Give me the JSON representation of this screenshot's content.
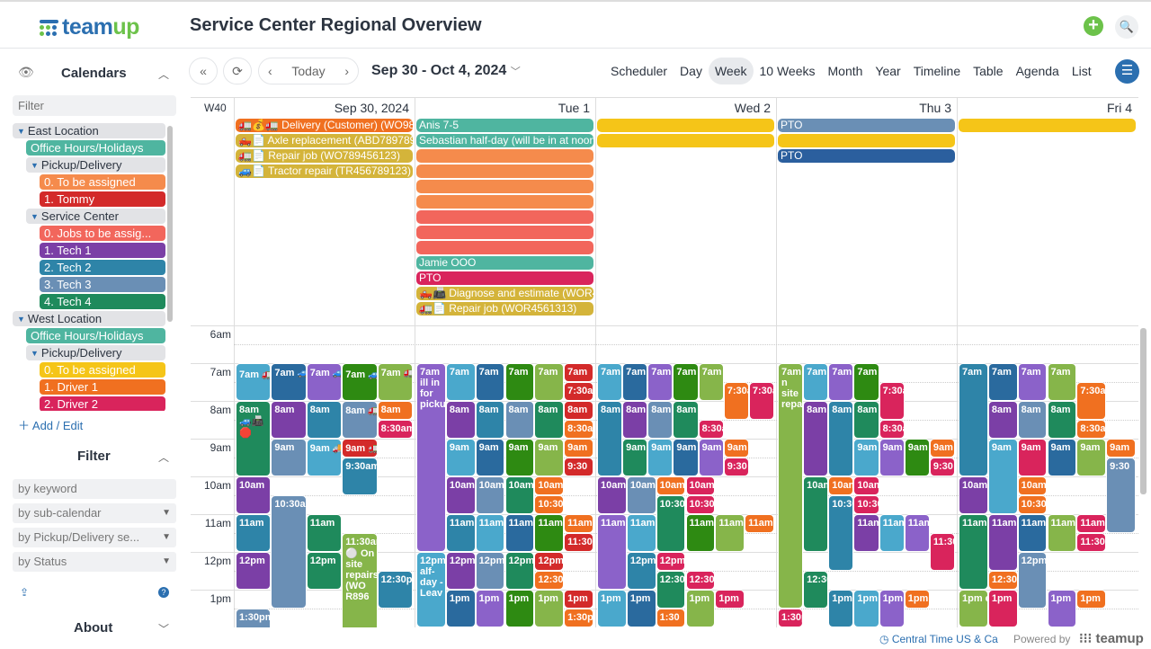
{
  "app": {
    "logo": "teamup",
    "title": "Service Center Regional Overview"
  },
  "sidebar": {
    "calendars_heading": "Calendars",
    "filter_placeholder": "Filter",
    "calendars": [
      {
        "label": "East Location",
        "group": true,
        "indent": 0
      },
      {
        "label": "Office Hours/Holidays",
        "color": "#4fb5a0",
        "indent": 1
      },
      {
        "label": "Pickup/Delivery",
        "group": true,
        "indent": 1
      },
      {
        "label": "0. To be assigned",
        "color": "#f58b4c",
        "indent": 2
      },
      {
        "label": "1. Tommy",
        "color": "#d32a2a",
        "indent": 2
      },
      {
        "label": "Service Center",
        "group": true,
        "indent": 1
      },
      {
        "label": "0. Jobs to be assig...",
        "color": "#f2665c",
        "indent": 2
      },
      {
        "label": "1. Tech 1",
        "color": "#7b3fa6",
        "indent": 2
      },
      {
        "label": "2. Tech 2",
        "color": "#2e84a8",
        "indent": 2
      },
      {
        "label": "3. Tech 3",
        "color": "#6a8fb5",
        "indent": 2
      },
      {
        "label": "4. Tech 4",
        "color": "#1f8a5c",
        "indent": 2
      },
      {
        "label": "West Location",
        "group": true,
        "indent": 0
      },
      {
        "label": "Office Hours/Holidays",
        "color": "#4fb5a0",
        "indent": 1
      },
      {
        "label": "Pickup/Delivery",
        "group": true,
        "indent": 1
      },
      {
        "label": "0. To be assigned",
        "color": "#f5c518",
        "indent": 2
      },
      {
        "label": "1. Driver 1",
        "color": "#f07020",
        "indent": 2
      },
      {
        "label": "2. Driver 2",
        "color": "#d9245c",
        "indent": 2
      }
    ],
    "add_edit": "Add / Edit",
    "filter_heading": "Filter",
    "filters": [
      "by keyword",
      "by sub-calendar",
      "by Pickup/Delivery se...",
      "by Status"
    ],
    "about_heading": "About"
  },
  "toolbar": {
    "today": "Today",
    "range": "Sep 30 - Oct 4, 2024",
    "views": [
      "Scheduler",
      "Day",
      "Week",
      "10 Weeks",
      "Month",
      "Year",
      "Timeline",
      "Table",
      "Agenda",
      "List"
    ],
    "active_view": "Week"
  },
  "grid": {
    "week": "W40",
    "days": [
      "Sep 30, 2024",
      "Tue 1",
      "Wed 2",
      "Thu 3",
      "Fri 4"
    ],
    "hours": [
      "6am",
      "7am",
      "8am",
      "9am",
      "10am",
      "11am",
      "12pm",
      "1pm"
    ],
    "first_hour": 6,
    "colors": {
      "lb": "#4aa8cc",
      "bl": "#2a6a9e",
      "pu": "#8b62c9",
      "dp": "#7b3fa6",
      "gr": "#2e8a12",
      "lg": "#86b54a",
      "te": "#1f8a5c",
      "st": "#6a8fb5",
      "mb": "#2e84a8",
      "rd": "#d32a2a",
      "or": "#f07020",
      "pk": "#d9245c",
      "yl": "#f5c518",
      "go": "#d4b43a",
      "sa": "#f58b4c",
      "co": "#f2665c",
      "aq": "#4fb5a0",
      "db": "#2b5f9e"
    },
    "allday": [
      [
        [
          "or",
          "🚛💰🚛 Delivery (Customer) (WO98"
        ],
        [
          "go",
          "🛻📄 Axle replacement (ABD789789"
        ],
        [
          "go",
          "🚛📄 Repair job (WO789456123)"
        ],
        [
          "go",
          "🚙📄 Tractor repair (TR456789123)"
        ]
      ],
      [
        [
          "aq",
          "Anis 7-5"
        ],
        [
          "aq",
          "Sebastian half-day (will be in at noon"
        ],
        [
          "sa",
          ""
        ],
        [
          "sa",
          ""
        ],
        [
          "sa",
          ""
        ],
        [
          "sa",
          ""
        ],
        [
          "co",
          ""
        ],
        [
          "co",
          ""
        ],
        [
          "co",
          ""
        ],
        [
          "aq",
          "Jamie OOO"
        ],
        [
          "pk",
          "PTO"
        ],
        [
          "go",
          "🛻📠 Diagnose and estimate (WOR4"
        ],
        [
          "go",
          "🚛📄 Repair job (WOR4561313)"
        ]
      ],
      [
        [
          "yl",
          ""
        ],
        [
          "yl",
          ""
        ]
      ],
      [
        [
          "st",
          "PTO"
        ],
        [
          "yl",
          ""
        ],
        [
          "db",
          "PTO"
        ]
      ],
      [
        [
          "yl",
          ""
        ]
      ]
    ],
    "events": [
      [
        [
          7,
          8,
          "lb",
          "7am 🚛〰 Repai"
        ],
        [
          7,
          8,
          "bl",
          "7am 🚙📠 ✓"
        ],
        [
          7,
          8,
          "pu",
          "7am 🚙✅ Small"
        ],
        [
          7,
          8,
          "gr",
          "7am 🚙〰 Lift"
        ],
        [
          7,
          8,
          "lg",
          "7am 🚛⏲ 📠"
        ],
        [
          8,
          10,
          "te",
          "8am 🚙📠 🛑"
        ],
        [
          8,
          9,
          "dp",
          "8am"
        ],
        [
          8,
          9,
          "mb",
          "8am"
        ],
        [
          8,
          9,
          "st",
          "8am 🚛⏲ 📠☑"
        ],
        [
          8,
          8.5,
          "or",
          "8am"
        ],
        [
          8.5,
          9,
          "pk",
          "8:30am"
        ],
        [
          9,
          10,
          "st",
          "9am"
        ],
        [
          9,
          10,
          "lb",
          "9am 🚚🔧 Repai"
        ],
        [
          9,
          9.5,
          "rd",
          "9am 🚛💰🚛"
        ],
        [
          9.5,
          10.5,
          "mb",
          "9:30am"
        ],
        [
          10,
          11,
          "dp",
          "10am"
        ],
        [
          10.5,
          13.5,
          "st",
          "10:30am"
        ],
        [
          11,
          12,
          "mb",
          "11am"
        ],
        [
          11,
          12,
          "te",
          "11am"
        ],
        [
          11.5,
          14.5,
          "lg",
          "11:30am ⚪ On site repairs (WO R896"
        ],
        [
          12,
          13,
          "dp",
          "12pm"
        ],
        [
          12,
          13,
          "te",
          "12pm"
        ],
        [
          12.5,
          13.5,
          "mb",
          "12:30pm"
        ],
        [
          13.5,
          14.5,
          "st",
          "1:30pm"
        ]
      ],
      [
        [
          7,
          12,
          "pu",
          "7am ill in for pickup/deliveries"
        ],
        [
          7,
          8,
          "lb",
          "7am"
        ],
        [
          7,
          8,
          "bl",
          "7am"
        ],
        [
          7,
          8,
          "gr",
          "7am"
        ],
        [
          7,
          8,
          "lg",
          "7am"
        ],
        [
          7,
          7.5,
          "rd",
          "7am"
        ],
        [
          7.5,
          8,
          "rd",
          "7:30am"
        ],
        [
          8,
          9,
          "dp",
          "8am"
        ],
        [
          8,
          9,
          "mb",
          "8am"
        ],
        [
          8,
          9,
          "st",
          "8am"
        ],
        [
          8,
          9,
          "te",
          "8am"
        ],
        [
          8,
          8.5,
          "rd",
          "8am"
        ],
        [
          8.5,
          9,
          "or",
          "8:30am"
        ],
        [
          9,
          10,
          "lb",
          "9am"
        ],
        [
          9,
          10,
          "bl",
          "9am"
        ],
        [
          9,
          10,
          "gr",
          "9am"
        ],
        [
          9,
          10,
          "lg",
          "9am"
        ],
        [
          9,
          9.5,
          "or",
          "9am"
        ],
        [
          9.5,
          10,
          "rd",
          "9:30"
        ],
        [
          10,
          11,
          "dp",
          "10am"
        ],
        [
          10,
          11,
          "st",
          "10am"
        ],
        [
          10,
          11,
          "te",
          "10am"
        ],
        [
          10,
          10.5,
          "or",
          "10am"
        ],
        [
          10.5,
          11,
          "or",
          "10:30am"
        ],
        [
          11,
          12,
          "mb",
          "11am"
        ],
        [
          11,
          12,
          "lb",
          "11am"
        ],
        [
          11,
          12,
          "bl",
          "11am"
        ],
        [
          11,
          12,
          "gr",
          "11am"
        ],
        [
          11,
          11.5,
          "or",
          "11am"
        ],
        [
          11.5,
          12,
          "rd",
          "11:30am"
        ],
        [
          12,
          14,
          "lb",
          "12pm alf-day - Leav"
        ],
        [
          12,
          13,
          "dp",
          "12pm"
        ],
        [
          12,
          13,
          "st",
          "12pm"
        ],
        [
          12,
          13,
          "te",
          "12pm"
        ],
        [
          12,
          12.5,
          "rd",
          "12pm"
        ],
        [
          12.5,
          13,
          "or",
          "12:30pm"
        ],
        [
          13,
          14,
          "bl",
          "1pm"
        ],
        [
          13,
          14,
          "pu",
          "1pm"
        ],
        [
          13,
          14,
          "gr",
          "1pm"
        ],
        [
          13,
          14,
          "lg",
          "1pm"
        ],
        [
          13,
          13.5,
          "rd",
          "1pm"
        ],
        [
          13.5,
          14,
          "or",
          "1:30pm"
        ]
      ],
      [
        [
          7,
          8,
          "lb",
          "7am"
        ],
        [
          7,
          8,
          "bl",
          "7am"
        ],
        [
          7,
          8,
          "pu",
          "7am"
        ],
        [
          7,
          8,
          "gr",
          "7am"
        ],
        [
          7,
          8,
          "lg",
          "7am"
        ],
        [
          7.5,
          8.5,
          "or",
          "7:30am"
        ],
        [
          7.5,
          8.5,
          "pk",
          "7:30am"
        ],
        [
          8,
          10,
          "mb",
          "8am"
        ],
        [
          8,
          9,
          "dp",
          "8am"
        ],
        [
          8,
          9,
          "st",
          "8am"
        ],
        [
          8,
          9,
          "te",
          "8am"
        ],
        [
          8.5,
          9,
          "pk",
          "8:30am"
        ],
        [
          9,
          10,
          "te",
          "9am"
        ],
        [
          9,
          10,
          "lb",
          "9am"
        ],
        [
          9,
          10,
          "bl",
          "9am"
        ],
        [
          9,
          10,
          "pu",
          "9am"
        ],
        [
          9,
          9.5,
          "or",
          "9am"
        ],
        [
          9.5,
          10,
          "pk",
          "9:30"
        ],
        [
          10,
          11,
          "dp",
          "10am"
        ],
        [
          10,
          11,
          "st",
          "10am"
        ],
        [
          10,
          10.5,
          "or",
          "10am"
        ],
        [
          10,
          10.5,
          "pk",
          "10am"
        ],
        [
          10.5,
          12,
          "te",
          "10:30"
        ],
        [
          10.5,
          11,
          "pk",
          "10:30am"
        ],
        [
          11,
          13,
          "pu",
          "11am"
        ],
        [
          11,
          12,
          "lb",
          "11am"
        ],
        [
          11,
          12,
          "gr",
          "11am"
        ],
        [
          11,
          12,
          "lg",
          "11am"
        ],
        [
          11,
          11.5,
          "or",
          "11am"
        ],
        [
          12,
          13,
          "mb",
          "12pm"
        ],
        [
          12,
          12.5,
          "pk",
          "12pm"
        ],
        [
          12.5,
          13.5,
          "te",
          "12:30"
        ],
        [
          12.5,
          13,
          "pk",
          "12:30pm"
        ],
        [
          13,
          14,
          "lb",
          "1pm"
        ],
        [
          13,
          14,
          "bl",
          "1pm"
        ],
        [
          13,
          14,
          "lg",
          "1pm"
        ],
        [
          13,
          13.5,
          "pk",
          "1pm"
        ],
        [
          13.5,
          14,
          "or",
          "1:30"
        ]
      ],
      [
        [
          7,
          13.5,
          "lg",
          "7am n site repairs"
        ],
        [
          7,
          8,
          "lb",
          "7am"
        ],
        [
          7,
          8,
          "pu",
          "7am"
        ],
        [
          7,
          8,
          "gr",
          "7am"
        ],
        [
          7.5,
          8.5,
          "pk",
          "7:30am"
        ],
        [
          8,
          10,
          "dp",
          "8am"
        ],
        [
          8,
          10,
          "mb",
          "8am"
        ],
        [
          8,
          9,
          "te",
          "8am"
        ],
        [
          8.5,
          9,
          "pk",
          "8:30am"
        ],
        [
          9,
          10,
          "lb",
          "9am"
        ],
        [
          9,
          10,
          "pu",
          "9am"
        ],
        [
          9,
          10,
          "gr",
          "9am"
        ],
        [
          9,
          9.5,
          "or",
          "9am"
        ],
        [
          9.5,
          10,
          "pk",
          "9:30"
        ],
        [
          10,
          12,
          "te",
          "10am"
        ],
        [
          10,
          10.5,
          "or",
          "10am"
        ],
        [
          10,
          10.5,
          "pk",
          "10am"
        ],
        [
          10.5,
          12.5,
          "mb",
          "10:30"
        ],
        [
          10.5,
          11,
          "pk",
          "10:30am"
        ],
        [
          11,
          12,
          "dp",
          "11am"
        ],
        [
          11,
          12,
          "lb",
          "11am"
        ],
        [
          11,
          12,
          "pu",
          "11am"
        ],
        [
          11.5,
          12.5,
          "pk",
          "11:30am"
        ],
        [
          12.5,
          13.5,
          "te",
          "12:30"
        ],
        [
          13,
          14,
          "mb",
          "1pm"
        ],
        [
          13,
          14,
          "lb",
          "1pm"
        ],
        [
          13,
          14,
          "pu",
          "1pm"
        ],
        [
          13,
          13.5,
          "or",
          "1pm"
        ],
        [
          13.5,
          14,
          "pk",
          "1:30pm"
        ]
      ],
      [
        [
          7,
          10,
          "mb",
          "7am"
        ],
        [
          7,
          8,
          "bl",
          "7am"
        ],
        [
          7,
          8,
          "pu",
          "7am"
        ],
        [
          7,
          8,
          "lg",
          "7am"
        ],
        [
          7.5,
          8.5,
          "or",
          "7:30am"
        ],
        [
          8,
          9,
          "dp",
          "8am"
        ],
        [
          8,
          9,
          "st",
          "8am"
        ],
        [
          8,
          9,
          "te",
          "8am"
        ],
        [
          8.5,
          9,
          "or",
          "8:30am"
        ],
        [
          9,
          11,
          "lb",
          "9am"
        ],
        [
          9,
          10,
          "pk",
          "9am"
        ],
        [
          9,
          10,
          "bl",
          "9am"
        ],
        [
          9,
          10,
          "lg",
          "9am"
        ],
        [
          9,
          9.5,
          "or",
          "9am"
        ],
        [
          9.5,
          11.5,
          "st",
          "9:30"
        ],
        [
          10,
          11,
          "dp",
          "10am"
        ],
        [
          10,
          10.5,
          "or",
          "10am"
        ],
        [
          10.5,
          11,
          "or",
          "10:30am"
        ],
        [
          11,
          13,
          "te",
          "11am"
        ],
        [
          11,
          12.5,
          "dp",
          "11am"
        ],
        [
          11,
          12,
          "bl",
          "11am"
        ],
        [
          11,
          12,
          "lg",
          "11am"
        ],
        [
          11,
          11.5,
          "pk",
          "11am"
        ],
        [
          11.5,
          12,
          "pk",
          "11:30am"
        ],
        [
          12,
          13.5,
          "st",
          "12pm"
        ],
        [
          12.5,
          13,
          "or",
          "12:30pm"
        ],
        [
          13,
          14,
          "lg",
          "1pm ertif"
        ],
        [
          13,
          14,
          "pk",
          "1pm"
        ],
        [
          13,
          14,
          "pu",
          "1pm"
        ],
        [
          13,
          13.5,
          "or",
          "1pm"
        ]
      ]
    ]
  },
  "footer": {
    "timezone": "Central Time US & Ca",
    "powered": "Powered by",
    "brand": "teamup"
  }
}
